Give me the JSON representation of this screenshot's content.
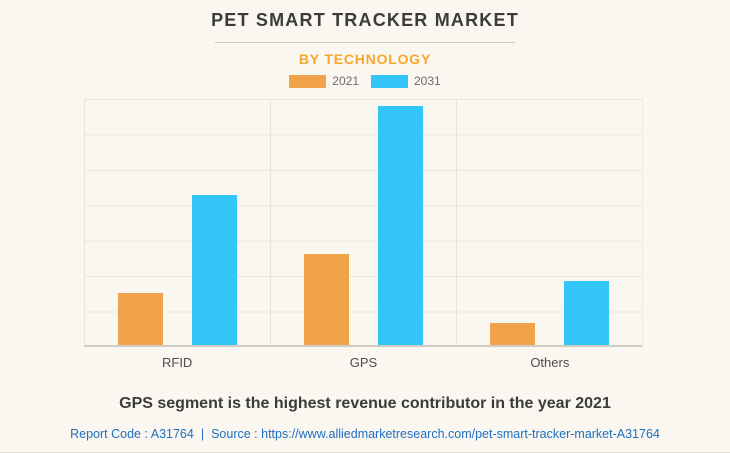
{
  "header": {
    "title": "PET SMART TRACKER MARKET",
    "subtitle": "BY TECHNOLOGY"
  },
  "footer": {
    "highlight": "GPS segment is the highest revenue contributor in the year 2021",
    "report_code": "Report Code : A31764",
    "separator": "|",
    "source_prefix": "Source :",
    "source_url": "https://www.alliedmarketresearch.com/pet-smart-tracker-market-A31764"
  },
  "colors": {
    "background": "#FAF7F0",
    "series_2021_orange": "#F0A348",
    "series_2031_blue": "#33C5F7",
    "subtitle_orange": "#F6A72E",
    "link_blue": "#1F6FC2",
    "title_text": "#3B3B3B",
    "gridline": "#EAE7E0"
  },
  "chart_data": {
    "type": "bar",
    "title": "PET SMART TRACKER MARKET",
    "subtitle": "BY TECHNOLOGY",
    "categories": [
      "RFID",
      "GPS",
      "Others"
    ],
    "series": [
      {
        "name": "2021",
        "color": "#F0A348",
        "values": [
          21,
          37,
          9
        ]
      },
      {
        "name": "2031",
        "color": "#33C5F7",
        "values": [
          61,
          97,
          26
        ]
      }
    ],
    "xlabel": "",
    "ylabel": "",
    "ylim": [
      0,
      100
    ],
    "y_axis_labels_visible": false,
    "grid": true,
    "legend_position": "top"
  }
}
